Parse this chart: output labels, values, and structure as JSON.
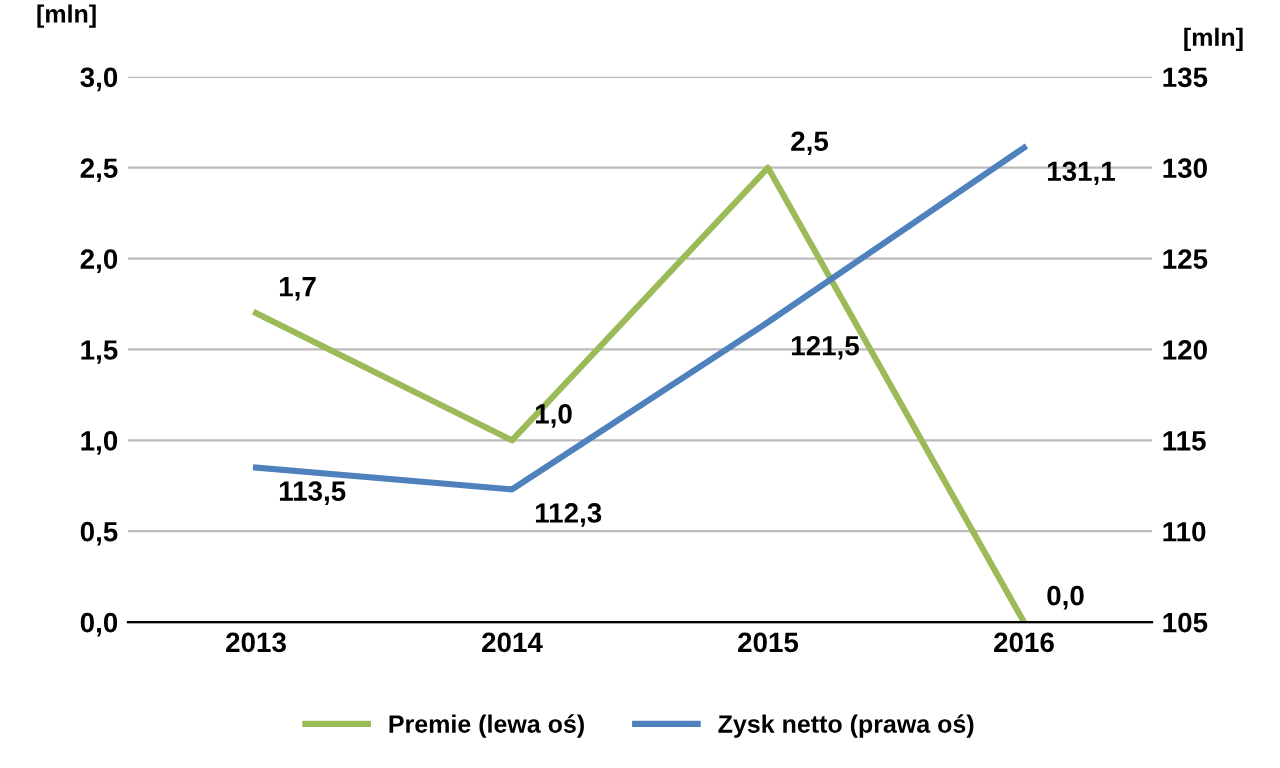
{
  "chart_data": {
    "type": "line",
    "categories": [
      "2013",
      "2014",
      "2015",
      "2016"
    ],
    "ylabel": "[mln]",
    "y2label": "[mln]",
    "series": [
      {
        "name": "Premie (lewa oś)",
        "color": "#9bbb59",
        "values": [
          1.7,
          1.0,
          2.5,
          0.0
        ],
        "value_labels": [
          "1,7",
          "1,0",
          "2,5",
          "0,0"
        ]
      },
      {
        "name": "Zysk netto (prawa oś)",
        "color": "#4f81bd",
        "axis": "y2",
        "values": [
          113.5,
          112.3,
          121.5,
          131.1
        ],
        "value_labels": [
          "113,5",
          "112,3",
          "121,5",
          "131,1"
        ]
      }
    ],
    "ylim": [
      0,
      3
    ],
    "yticks": [
      {
        "value": 0,
        "label": "0,0"
      },
      {
        "value": 0.5,
        "label": "0,5"
      },
      {
        "value": 1,
        "label": "1,0"
      },
      {
        "value": 1.5,
        "label": "1,5"
      },
      {
        "value": 2,
        "label": "2,0"
      },
      {
        "value": 2.5,
        "label": "2,5"
      },
      {
        "value": 3,
        "label": "3,0"
      }
    ],
    "y2lim": [
      105,
      135
    ],
    "y2ticks": [
      105,
      110,
      115,
      120,
      125,
      130,
      135
    ],
    "grid": "y",
    "legend": "bottom",
    "marker": "none",
    "line_style": "solid"
  }
}
